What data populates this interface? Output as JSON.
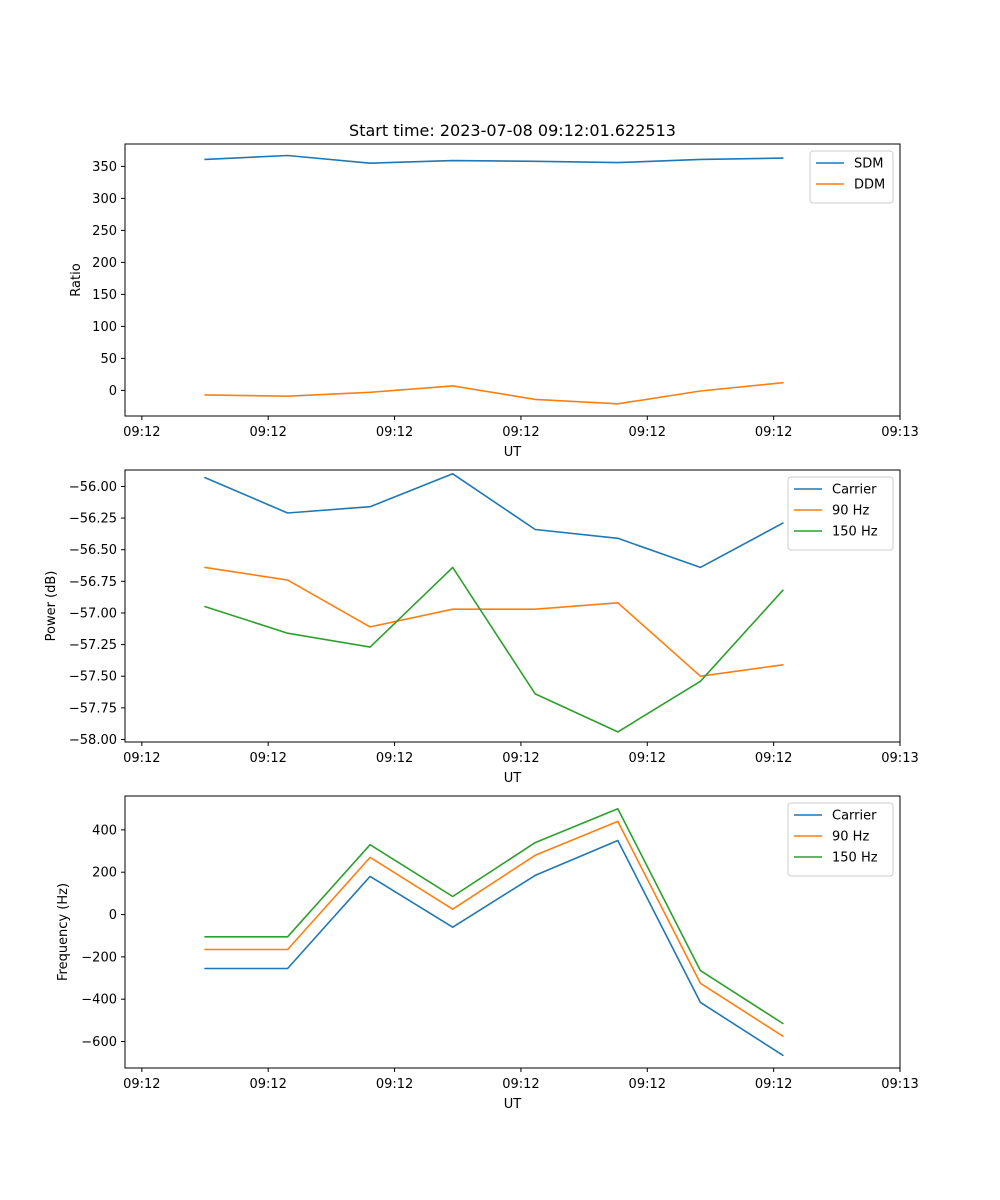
{
  "chart_data": [
    {
      "type": "line",
      "title": "Start time: 2023-07-08 09:12:01.622513",
      "xlabel": "UT",
      "ylabel": "Ratio",
      "xlim": [
        -0.2,
        9.0
      ],
      "ylim": [
        -40,
        385
      ],
      "x": [
        0.75,
        1.73,
        2.71,
        3.69,
        4.67,
        5.65,
        6.63,
        7.61
      ],
      "xtick_values": [
        0,
        1.5,
        3,
        4.5,
        6,
        7.5,
        9
      ],
      "xtick_labels": [
        "09:12",
        "09:12",
        "09:12",
        "09:12",
        "09:12",
        "09:12",
        "09:13"
      ],
      "yticks": [
        0,
        50,
        100,
        150,
        200,
        250,
        300,
        350
      ],
      "ytick_labels": [
        "0",
        "50",
        "100",
        "150",
        "200",
        "250",
        "300",
        "350"
      ],
      "legend": {
        "position": "top-right"
      },
      "series": [
        {
          "name": "SDM",
          "color": "#1f77b4",
          "values": [
            361,
            367,
            355,
            359,
            358,
            356,
            361,
            363
          ]
        },
        {
          "name": "DDM",
          "color": "#ff7f0e",
          "values": [
            -7,
            -9,
            -3,
            7,
            -14,
            -21,
            -1,
            12
          ]
        }
      ]
    },
    {
      "type": "line",
      "title": "",
      "xlabel": "UT",
      "ylabel": "Power (dB)",
      "xlim": [
        -0.2,
        9.0
      ],
      "ylim": [
        -58.02,
        -55.87
      ],
      "x": [
        0.75,
        1.73,
        2.71,
        3.69,
        4.67,
        5.65,
        6.63,
        7.61
      ],
      "xtick_values": [
        0,
        1.5,
        3,
        4.5,
        6,
        7.5,
        9
      ],
      "xtick_labels": [
        "09:12",
        "09:12",
        "09:12",
        "09:12",
        "09:12",
        "09:12",
        "09:13"
      ],
      "yticks": [
        -58.0,
        -57.75,
        -57.5,
        -57.25,
        -57.0,
        -56.75,
        -56.5,
        -56.25,
        -56.0
      ],
      "ytick_labels": [
        "−58.00",
        "−57.75",
        "−57.50",
        "−57.25",
        "−57.00",
        "−56.75",
        "−56.50",
        "−56.25",
        "−56.00"
      ],
      "legend": {
        "position": "top-right"
      },
      "series": [
        {
          "name": "Carrier",
          "color": "#1f77b4",
          "values": [
            -55.93,
            -56.21,
            -56.16,
            -55.9,
            -56.34,
            -56.41,
            -56.64,
            -56.29
          ]
        },
        {
          "name": "90 Hz",
          "color": "#ff7f0e",
          "values": [
            -56.64,
            -56.74,
            -57.11,
            -56.97,
            -56.97,
            -56.92,
            -57.5,
            -57.41
          ]
        },
        {
          "name": "150 Hz",
          "color": "#2ca02c",
          "values": [
            -56.95,
            -57.16,
            -57.27,
            -56.64,
            -57.64,
            -57.94,
            -57.54,
            -56.82
          ]
        }
      ]
    },
    {
      "type": "line",
      "title": "",
      "xlabel": "UT",
      "ylabel": "Frequency (Hz)",
      "xlim": [
        -0.2,
        9.0
      ],
      "ylim": [
        -725,
        560
      ],
      "x": [
        0.75,
        1.73,
        2.71,
        3.69,
        4.67,
        5.65,
        6.63,
        7.61
      ],
      "xtick_values": [
        0,
        1.5,
        3,
        4.5,
        6,
        7.5,
        9
      ],
      "xtick_labels": [
        "09:12",
        "09:12",
        "09:12",
        "09:12",
        "09:12",
        "09:12",
        "09:13"
      ],
      "yticks": [
        -600,
        -400,
        -200,
        0,
        200,
        400
      ],
      "ytick_labels": [
        "−600",
        "−400",
        "−200",
        "0",
        "200",
        "400"
      ],
      "legend": {
        "position": "top-right"
      },
      "series": [
        {
          "name": "Carrier",
          "color": "#1f77b4",
          "values": [
            -255,
            -255,
            180,
            -60,
            185,
            350,
            -415,
            -665
          ]
        },
        {
          "name": "90 Hz",
          "color": "#ff7f0e",
          "values": [
            -165,
            -165,
            270,
            25,
            280,
            440,
            -325,
            -575
          ]
        },
        {
          "name": "150 Hz",
          "color": "#2ca02c",
          "values": [
            -105,
            -105,
            330,
            85,
            340,
            500,
            -265,
            -515
          ]
        }
      ]
    }
  ]
}
